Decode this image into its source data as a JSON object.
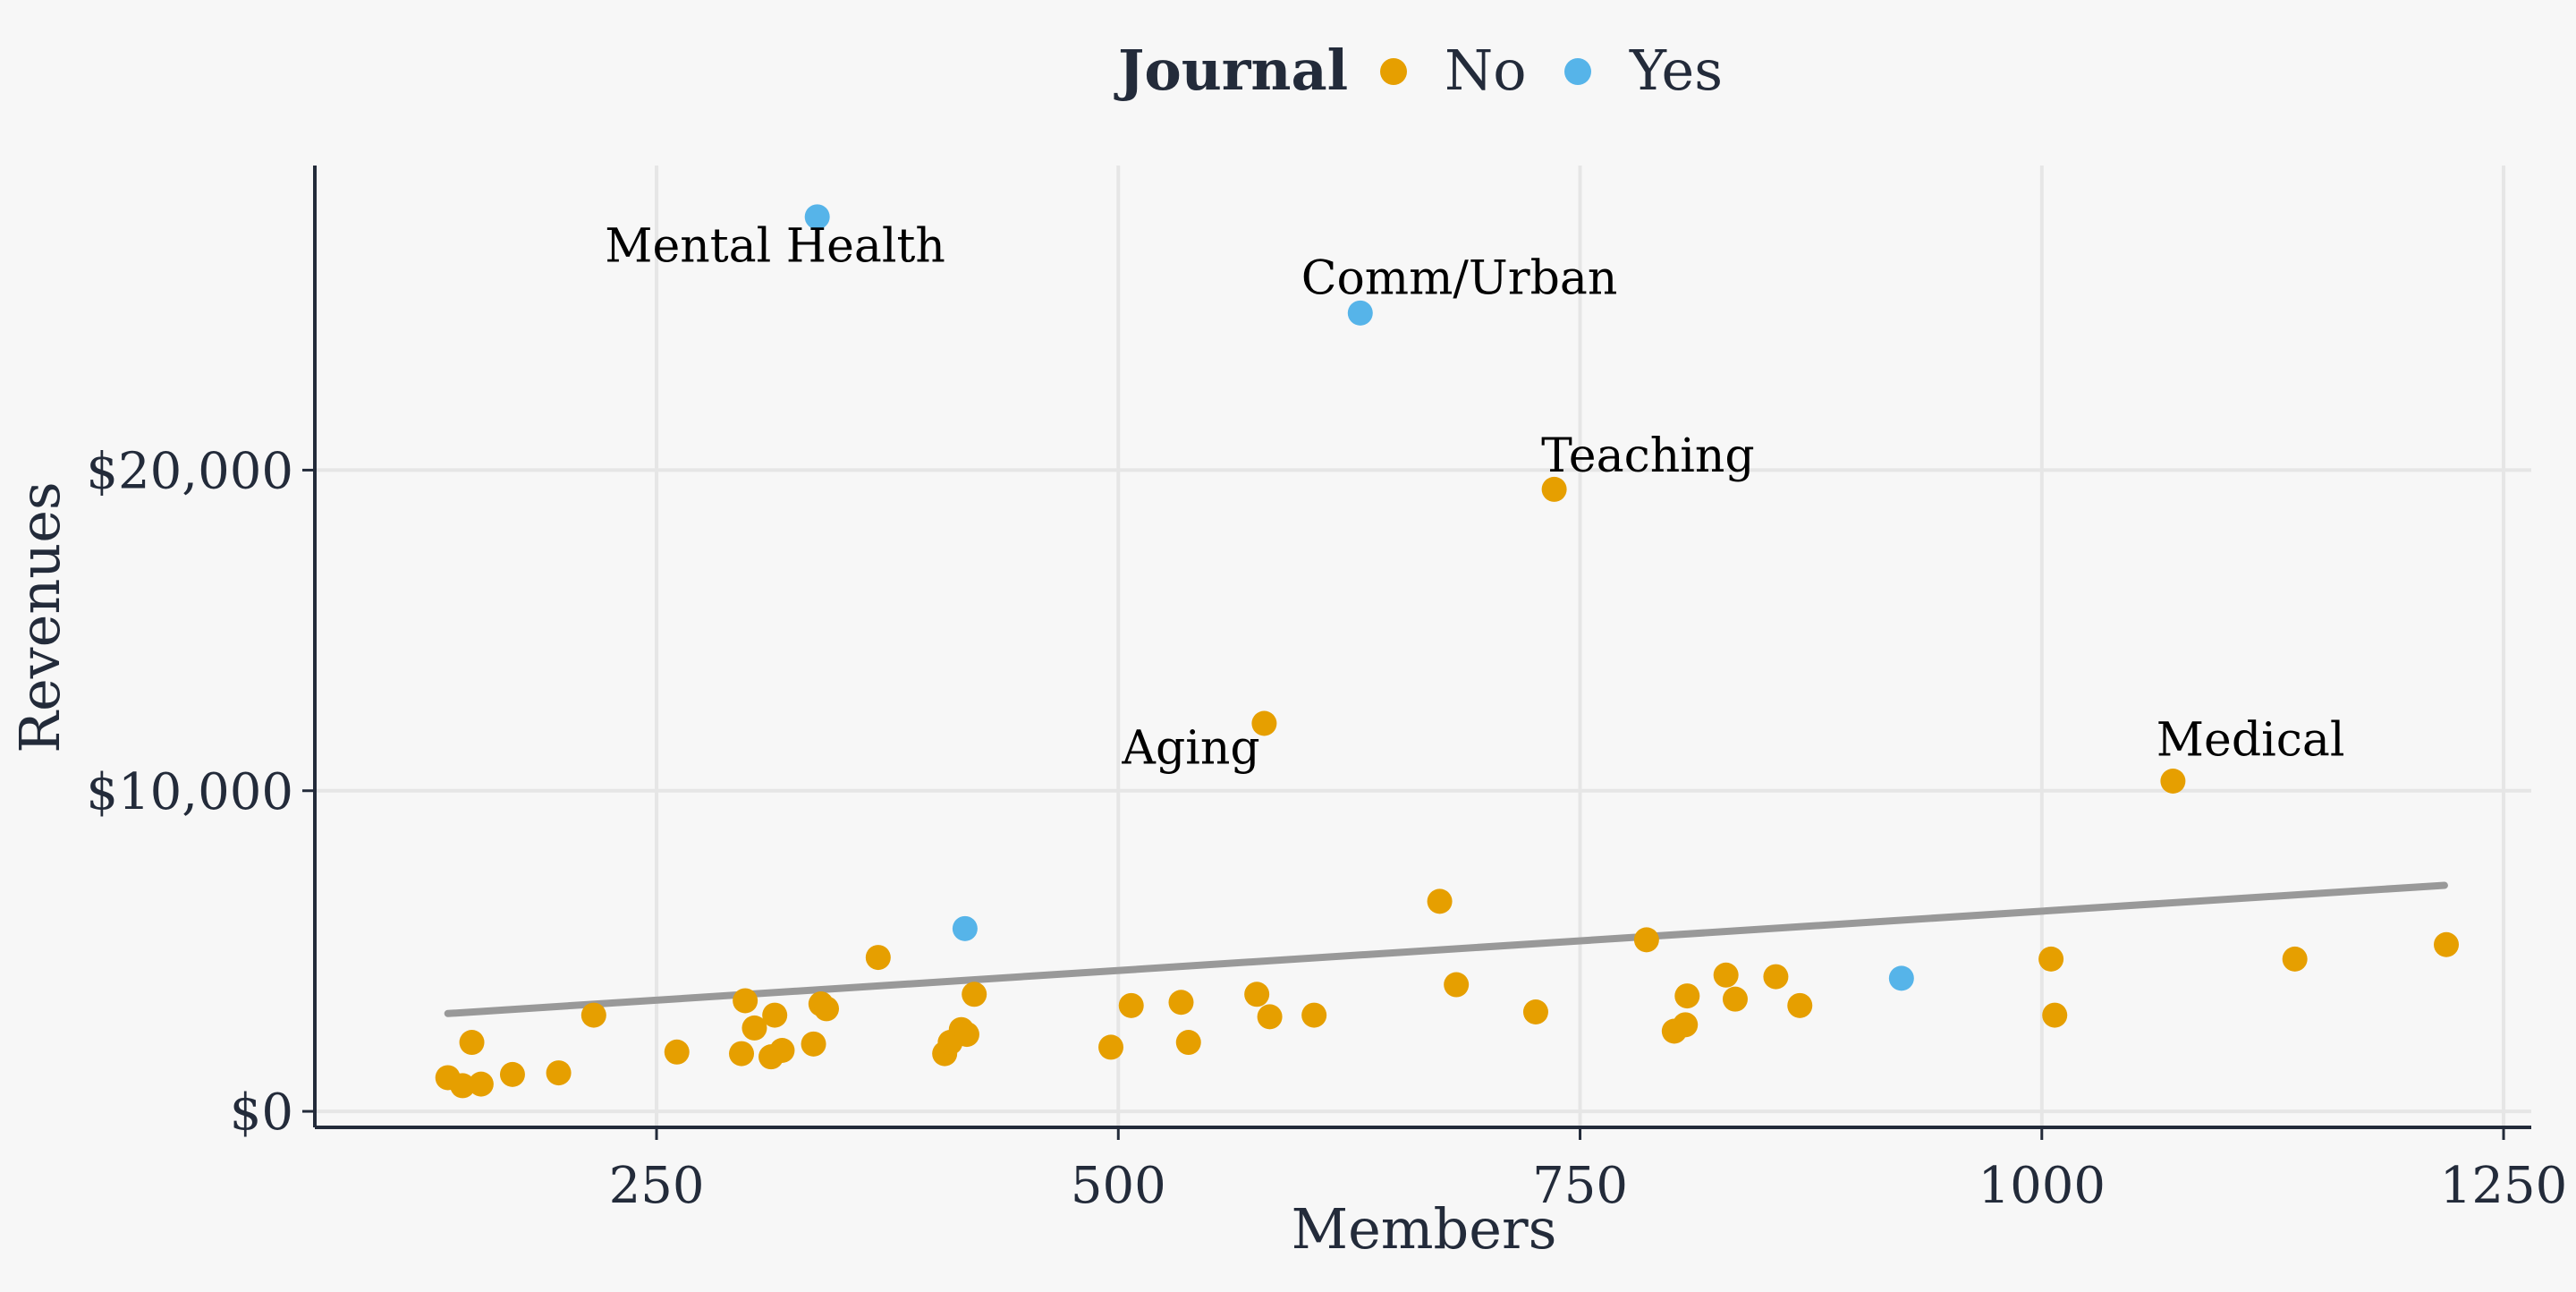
{
  "chart_data": {
    "type": "scatter",
    "xlabel": "Members",
    "ylabel": "Revenues",
    "xlim": [
      65,
      1265
    ],
    "ylim": [
      -500,
      29500
    ],
    "x_ticks": [
      250,
      500,
      750,
      1000,
      1250
    ],
    "y_ticks": [
      0,
      10000,
      20000
    ],
    "y_tick_labels": [
      "$0",
      "$10,000",
      "$20,000"
    ],
    "grid": true,
    "legend": {
      "title": "Journal",
      "placement": "top",
      "entries": [
        {
          "label": "No",
          "color": "#E69F00"
        },
        {
          "label": "Yes",
          "color": "#56B4E9"
        }
      ]
    },
    "trend_line": {
      "x": [
        137,
        1218
      ],
      "y": [
        3050,
        7050
      ],
      "color": "#999999"
    },
    "annotations": [
      {
        "text": "Mental Health",
        "x": 222,
        "y": 26500
      },
      {
        "text": "Comm/Urban",
        "x": 599,
        "y": 25500
      },
      {
        "text": "Teaching",
        "x": 729,
        "y": 19950
      },
      {
        "text": "Aging",
        "x": 502,
        "y": 10850
      },
      {
        "text": "Medical",
        "x": 1062,
        "y": 11100
      }
    ],
    "series": [
      {
        "name": "No",
        "color": "#E69F00",
        "points": [
          [
            137,
            1050
          ],
          [
            145,
            800
          ],
          [
            155,
            850
          ],
          [
            150,
            2150
          ],
          [
            172,
            1150
          ],
          [
            197,
            1200
          ],
          [
            216,
            3000
          ],
          [
            261,
            1850
          ],
          [
            296,
            1800
          ],
          [
            298,
            3450
          ],
          [
            303,
            2600
          ],
          [
            312,
            1700
          ],
          [
            314,
            3000
          ],
          [
            318,
            1900
          ],
          [
            335,
            2100
          ],
          [
            339,
            3350
          ],
          [
            342,
            3200
          ],
          [
            370,
            4800
          ],
          [
            406,
            1800
          ],
          [
            409,
            2150
          ],
          [
            415,
            2550
          ],
          [
            418,
            2400
          ],
          [
            422,
            3650
          ],
          [
            496,
            2000
          ],
          [
            507,
            3300
          ],
          [
            534,
            3400
          ],
          [
            538,
            2150
          ],
          [
            575,
            3650
          ],
          [
            579,
            12100
          ],
          [
            582,
            2950
          ],
          [
            606,
            3000
          ],
          [
            674,
            6550
          ],
          [
            683,
            3950
          ],
          [
            726,
            3100
          ],
          [
            736,
            19400
          ],
          [
            786,
            5350
          ],
          [
            801,
            2500
          ],
          [
            807,
            2700
          ],
          [
            808,
            3600
          ],
          [
            829,
            4250
          ],
          [
            834,
            3500
          ],
          [
            856,
            4200
          ],
          [
            869,
            3300
          ],
          [
            1005,
            4750
          ],
          [
            1007,
            3000
          ],
          [
            1071,
            10300
          ],
          [
            1137,
            4750
          ],
          [
            1219,
            5200
          ]
        ]
      },
      {
        "name": "Yes",
        "color": "#56B4E9",
        "points": [
          [
            337,
            27900
          ],
          [
            417,
            5700
          ],
          [
            631,
            24900
          ],
          [
            924,
            4150
          ]
        ]
      }
    ]
  }
}
